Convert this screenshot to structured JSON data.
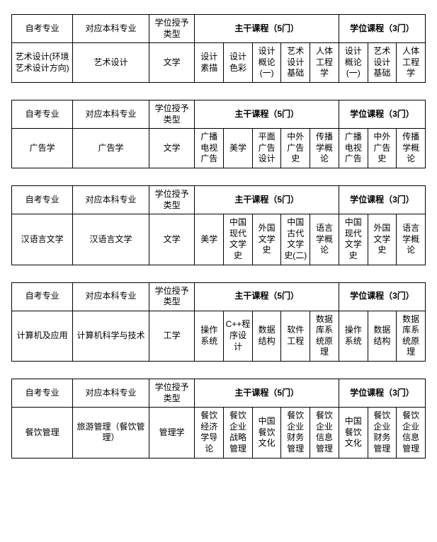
{
  "headers": {
    "col1": "自考专业",
    "col2": "对应本科专业",
    "col3": "学位授予类型",
    "main5": "主干课程（5门）",
    "deg3": "学位课程（3门）"
  },
  "tables": [
    {
      "major": "艺术设计(环境艺术设计方向)",
      "bachelor": "艺术设计",
      "degreeType": "文学",
      "main": [
        "设计素描",
        "设计色彩",
        "设计概论(一)",
        "艺术设计基础",
        "人体工程学"
      ],
      "deg": [
        "设计概论(一)",
        "艺术设计基础",
        "人体工程学"
      ]
    },
    {
      "major": "广告学",
      "bachelor": "广告学",
      "degreeType": "文学",
      "main": [
        "广播电视广告",
        "美学",
        "平面广告设计",
        "中外广告史",
        "传播学概论"
      ],
      "deg": [
        "广播电视广告",
        "中外广告史",
        "传播学概论"
      ]
    },
    {
      "major": "汉语言文学",
      "bachelor": "汉语言文学",
      "degreeType": "文学",
      "main": [
        "美学",
        "中国现代文学史",
        "外国文学史",
        "中国古代文学史(二)",
        "语言学概论"
      ],
      "deg": [
        "中国现代文学史",
        "外国文学史",
        "语言学概论"
      ]
    },
    {
      "major": "计算机及应用",
      "bachelor": "计算机科学与技术",
      "degreeType": "工学",
      "main": [
        "操作系统",
        "C++程序设计",
        "数据结构",
        "软件工程",
        "数据库系统原理"
      ],
      "deg": [
        "操作系统",
        "数据结构",
        "数据库系统原理"
      ]
    },
    {
      "major": "餐饮管理",
      "bachelor": "旅游管理（餐饮管理）",
      "degreeType": "管理学",
      "main": [
        "餐饮经济学导论",
        "餐饮企业战略管理",
        "中国餐饮文化",
        "餐饮企业财务管理",
        "餐饮企业信息管理"
      ],
      "deg": [
        "中国餐饮文化",
        "餐饮企业财务管理",
        "餐饮企业信息管理"
      ]
    }
  ]
}
